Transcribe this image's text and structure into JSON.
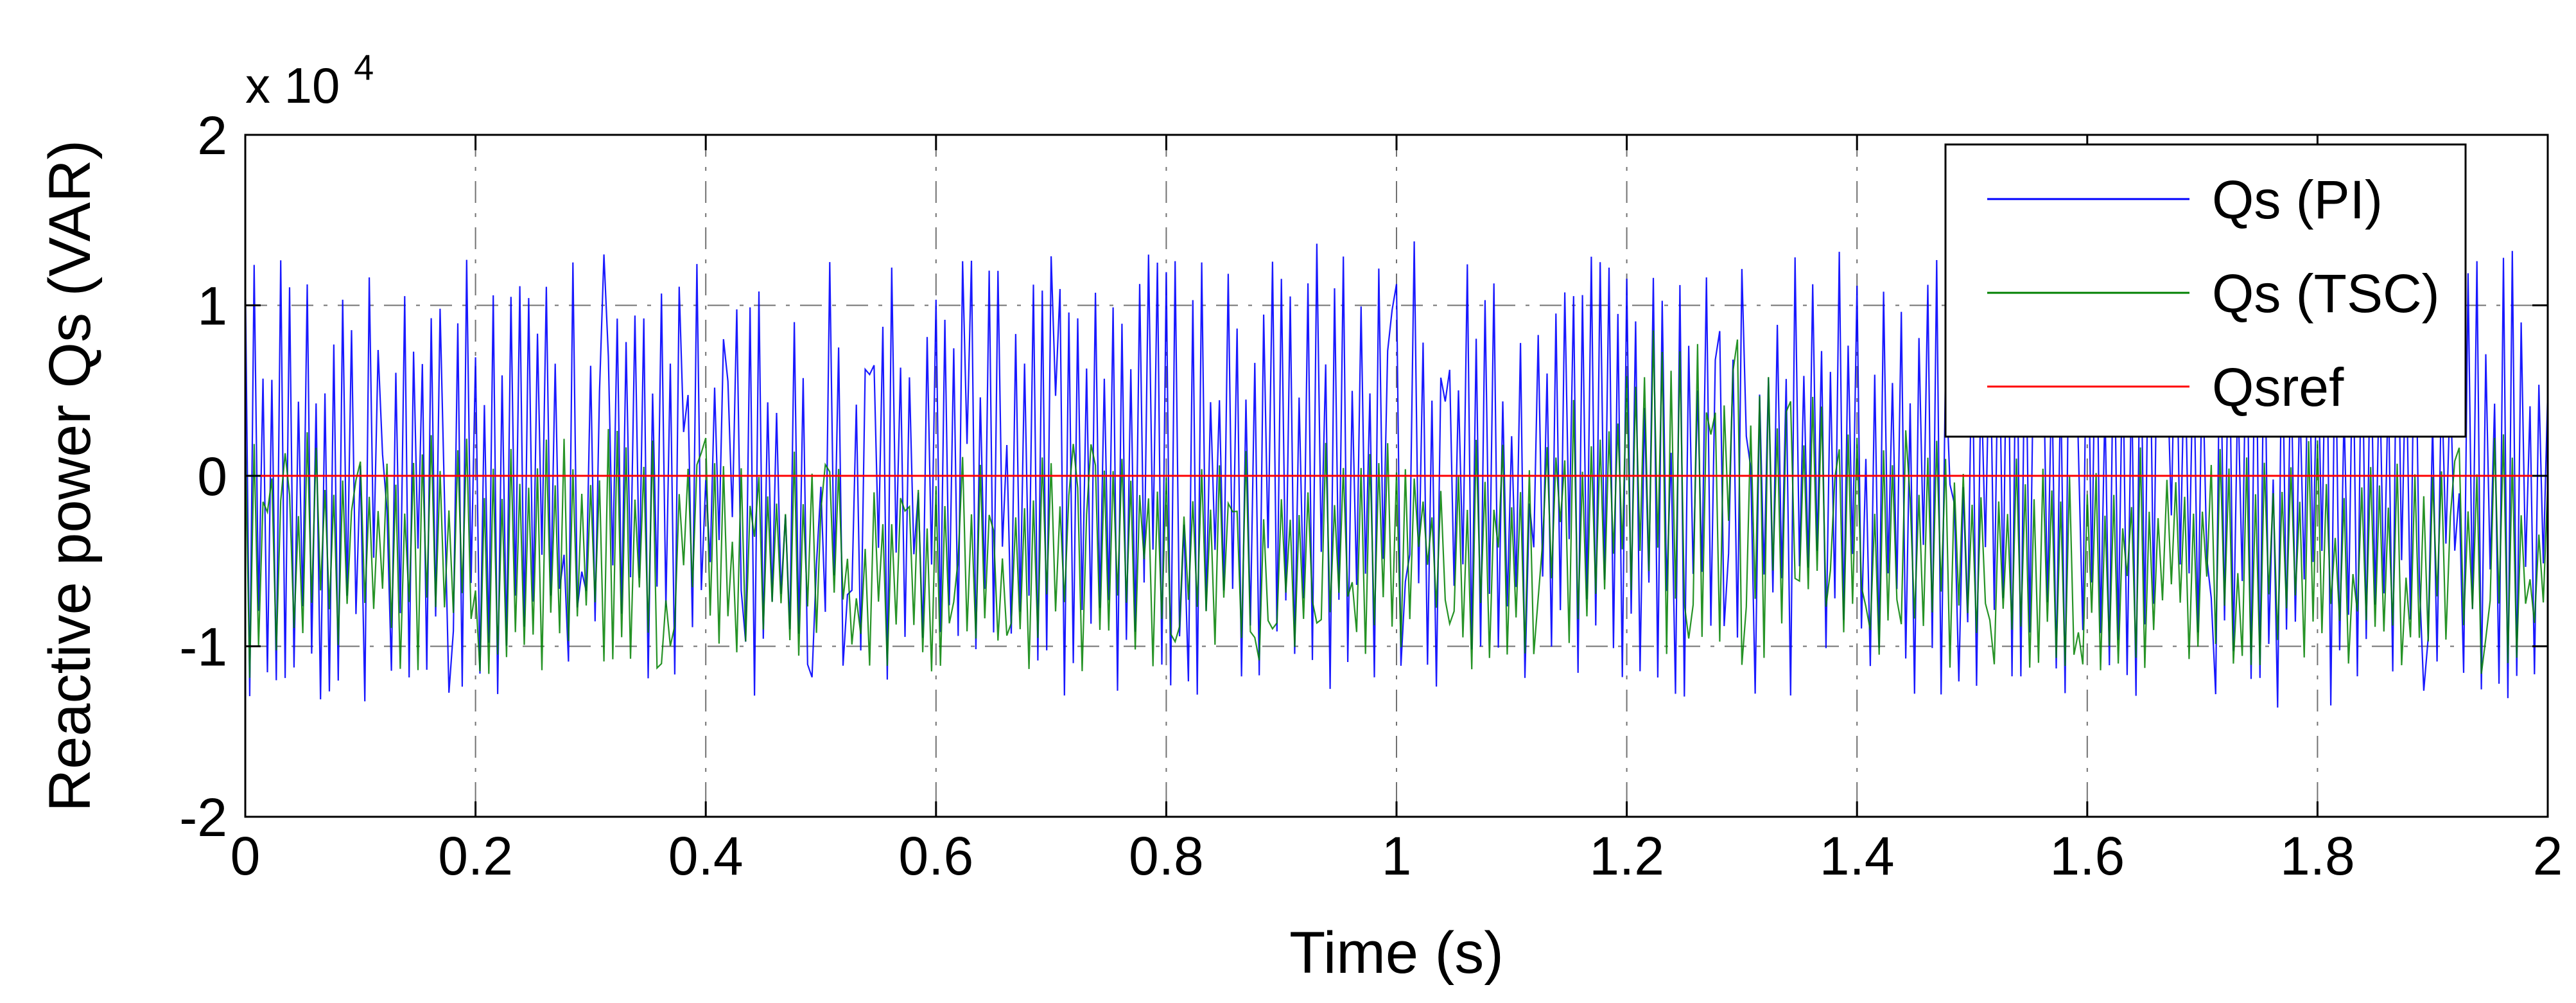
{
  "chart_data": {
    "type": "line",
    "xlabel": "Time (s)",
    "ylabel": "Reactive power Qs (VAR)",
    "y_exponent_label": {
      "prefix": "x 10",
      "exponent": "4"
    },
    "xlim": [
      0,
      2
    ],
    "ylim": [
      -20000,
      20000
    ],
    "x_ticks": [
      0,
      0.2,
      0.4,
      0.6,
      0.8,
      1,
      1.2,
      1.4,
      1.6,
      1.8,
      2
    ],
    "x_tick_labels": [
      "0",
      "0.2",
      "0.4",
      "0.6",
      "0.8",
      "1",
      "1.2",
      "1.4",
      "1.6",
      "1.8",
      "2"
    ],
    "y_ticks": [
      -20000,
      -10000,
      0,
      10000,
      20000
    ],
    "y_tick_labels": [
      "-2",
      "-1",
      "0",
      "1",
      "2"
    ],
    "grid": true,
    "legend_position": "top-right",
    "series": [
      {
        "name": "Qs (PI)",
        "color": "#0000ff",
        "style": "solid",
        "approx_range": [
          -13500,
          13500
        ],
        "approx_oscillation_frequency_hz": 50,
        "x_sampled": [
          0,
          0.1,
          0.2,
          0.3,
          0.4,
          0.5,
          0.6,
          0.7,
          0.8,
          0.9,
          1.0,
          1.1,
          1.2,
          1.3,
          1.4,
          1.5,
          1.6,
          1.7,
          1.8,
          1.9,
          2.0
        ],
        "y_upper_envelope": [
          12800,
          13300,
          13100,
          13200,
          12900,
          13300,
          13200,
          13000,
          13300,
          13500,
          14000,
          13200,
          12800,
          13000,
          13300,
          13500,
          13200,
          13400,
          13000,
          13200,
          13200
        ],
        "y_lower_envelope": [
          -13200,
          -13800,
          -13000,
          -13400,
          -13300,
          -13000,
          -13400,
          -13200,
          -13300,
          -13300,
          -13400,
          -13300,
          -13300,
          -12800,
          -13200,
          -13500,
          -13300,
          -13200,
          -13800,
          -13000,
          -13400
        ]
      },
      {
        "name": "Qs (TSC)",
        "color": "#008000",
        "style": "solid",
        "approx_range": [
          -12000,
          6000
        ],
        "approx_mean": -5000,
        "approx_oscillation_frequency_hz": 50,
        "x_sampled": [
          0,
          0.1,
          0.2,
          0.3,
          0.4,
          0.5,
          0.6,
          0.7,
          0.8,
          0.9,
          1.0,
          1.1,
          1.2,
          1.3,
          1.4,
          1.5,
          1.6,
          1.7,
          1.8,
          1.9,
          2.0
        ],
        "y_upper_envelope": [
          3500,
          2000,
          3000,
          3200,
          2500,
          1500,
          1000,
          2500,
          1500,
          2000,
          2500,
          2000,
          9000,
          8500,
          4000,
          2000,
          1500,
          2000,
          2500,
          2000,
          3000
        ],
        "y_lower_envelope": [
          -12000,
          -11500,
          -11800,
          -11500,
          -11800,
          -11000,
          -11500,
          -11500,
          -11700,
          -11200,
          -11500,
          -11800,
          -11000,
          -11200,
          -11500,
          -11700,
          -11500,
          -11200,
          -11800,
          -11500,
          -12000
        ]
      },
      {
        "name": "Qsref",
        "color": "#ff0000",
        "style": "solid",
        "x": [
          0,
          2
        ],
        "y": [
          0,
          0
        ]
      }
    ]
  }
}
